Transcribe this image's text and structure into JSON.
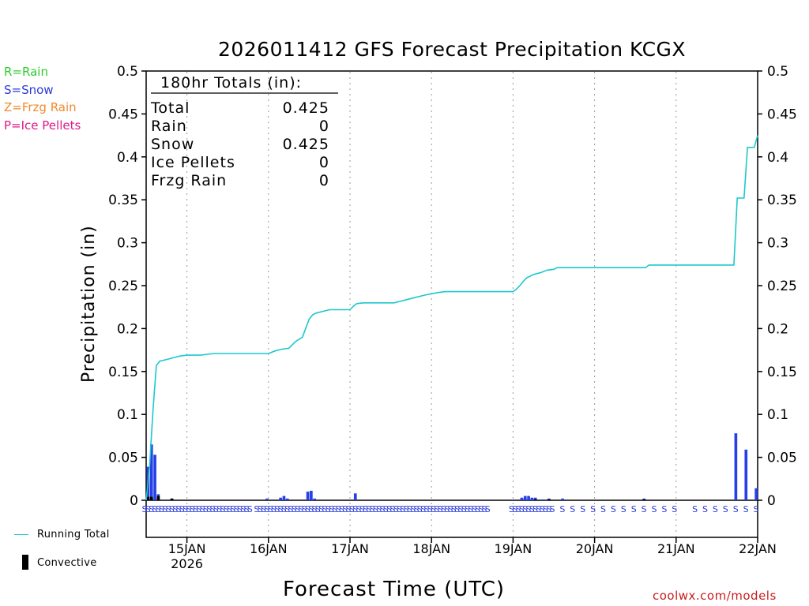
{
  "page": {
    "title": "2026011412 GFS Forecast Precipitation KCGX",
    "credit": "coolwx.com/models"
  },
  "ptype_legend": [
    {
      "label": "R=Rain",
      "color": "#2ecc2e"
    },
    {
      "label": "S=Snow",
      "color": "#2b3bd6"
    },
    {
      "label": "Z=Frzg Rain",
      "color": "#ee8a2c"
    },
    {
      "label": "P=Ice Pellets",
      "color": "#e0198a"
    }
  ],
  "bottom_legend": {
    "running_total": "Running Total",
    "convective": "Convective",
    "running_total_color": "#1cc8cc",
    "convective_color": "#000000"
  },
  "totals_box": {
    "header": "180hr Totals (in):",
    "rows": [
      {
        "label": "Total",
        "value": "0.425"
      },
      {
        "label": "Rain",
        "value": "0"
      },
      {
        "label": "Snow",
        "value": "0.425"
      },
      {
        "label": "Ice Pellets",
        "value": "0"
      },
      {
        "label": "Frzg Rain",
        "value": "0"
      }
    ]
  },
  "chart_data": {
    "type": "bar+line",
    "title": "2026011412 GFS Forecast Precipitation KCGX",
    "xlabel": "Forecast Time (UTC)",
    "ylabel": "Precipitation (in)",
    "ylim": [
      0,
      0.5
    ],
    "yticks": [
      "0",
      "0.05",
      "0.1",
      "0.15",
      "0.2",
      "0.25",
      "0.3",
      "0.35",
      "0.4",
      "0.45",
      "0.5"
    ],
    "xlim_hours": [
      0,
      180
    ],
    "xticks": [
      {
        "hour": 12,
        "label": "15JAN",
        "sublabel": "2026"
      },
      {
        "hour": 36,
        "label": "16JAN"
      },
      {
        "hour": 60,
        "label": "17JAN"
      },
      {
        "hour": 84,
        "label": "18JAN"
      },
      {
        "hour": 108,
        "label": "19JAN"
      },
      {
        "hour": 132,
        "label": "20JAN"
      },
      {
        "hour": 156,
        "label": "21JAN"
      },
      {
        "hour": 180,
        "label": "22JAN"
      }
    ],
    "bar_color": "#2440e6",
    "line_color": "#1cc8cc",
    "ptype_color": "#2b3bd6",
    "precip_bars": [
      {
        "hour": 1,
        "value": 0.039
      },
      {
        "hour": 2,
        "value": 0.065
      },
      {
        "hour": 3,
        "value": 0.053
      },
      {
        "hour": 4,
        "value": 0.007
      },
      {
        "hour": 8,
        "value": 0.002
      },
      {
        "hour": 36,
        "value": 0.002
      },
      {
        "hour": 40,
        "value": 0.003
      },
      {
        "hour": 41,
        "value": 0.005
      },
      {
        "hour": 42,
        "value": 0.002
      },
      {
        "hour": 48,
        "value": 0.01
      },
      {
        "hour": 49,
        "value": 0.011
      },
      {
        "hour": 50,
        "value": 0.002
      },
      {
        "hour": 62,
        "value": 0.008
      },
      {
        "hour": 111,
        "value": 0.003
      },
      {
        "hour": 112,
        "value": 0.005
      },
      {
        "hour": 113,
        "value": 0.005
      },
      {
        "hour": 114,
        "value": 0.003
      },
      {
        "hour": 115,
        "value": 0.003
      },
      {
        "hour": 117,
        "value": 0.001
      },
      {
        "hour": 119,
        "value": 0.002
      },
      {
        "hour": 123,
        "value": 0.002
      },
      {
        "hour": 147,
        "value": 0.002
      },
      {
        "hour": 174,
        "value": 0.078
      },
      {
        "hour": 177,
        "value": 0.059
      },
      {
        "hour": 180,
        "value": 0.014
      }
    ],
    "convective_bars": [
      {
        "hour": 1,
        "value": 0.004
      },
      {
        "hour": 2,
        "value": 0.004
      },
      {
        "hour": 4,
        "value": 0.005
      },
      {
        "hour": 8,
        "value": 0.002
      },
      {
        "hour": 115,
        "value": 0.001
      },
      {
        "hour": 119,
        "value": 0.001
      },
      {
        "hour": 147,
        "value": 0.001
      }
    ],
    "running_total": [
      [
        0,
        0.0
      ],
      [
        1,
        0.039
      ],
      [
        2,
        0.104
      ],
      [
        3,
        0.157
      ],
      [
        4,
        0.162
      ],
      [
        6,
        0.164
      ],
      [
        8,
        0.166
      ],
      [
        10,
        0.168
      ],
      [
        12,
        0.169
      ],
      [
        16,
        0.169
      ],
      [
        18,
        0.17
      ],
      [
        20,
        0.171
      ],
      [
        30,
        0.171
      ],
      [
        36,
        0.171
      ],
      [
        38,
        0.174
      ],
      [
        40,
        0.176
      ],
      [
        42,
        0.177
      ],
      [
        43,
        0.181
      ],
      [
        44,
        0.185
      ],
      [
        46,
        0.19
      ],
      [
        48,
        0.211
      ],
      [
        49,
        0.216
      ],
      [
        50,
        0.218
      ],
      [
        52,
        0.22
      ],
      [
        54,
        0.222
      ],
      [
        60,
        0.222
      ],
      [
        61,
        0.226
      ],
      [
        62,
        0.229
      ],
      [
        64,
        0.23
      ],
      [
        73,
        0.23
      ],
      [
        75,
        0.232
      ],
      [
        78,
        0.235
      ],
      [
        82,
        0.239
      ],
      [
        86,
        0.242
      ],
      [
        88,
        0.243
      ],
      [
        108,
        0.243
      ],
      [
        109,
        0.246
      ],
      [
        110,
        0.25
      ],
      [
        111,
        0.255
      ],
      [
        112,
        0.259
      ],
      [
        114,
        0.263
      ],
      [
        116,
        0.265
      ],
      [
        118,
        0.268
      ],
      [
        120,
        0.269
      ],
      [
        121,
        0.271
      ],
      [
        132,
        0.271
      ],
      [
        147,
        0.271
      ],
      [
        148,
        0.274
      ],
      [
        156,
        0.274
      ],
      [
        173,
        0.274
      ],
      [
        174,
        0.352
      ],
      [
        176,
        0.352
      ],
      [
        177,
        0.411
      ],
      [
        179,
        0.411
      ],
      [
        180,
        0.425
      ]
    ],
    "ptype_marks": [
      {
        "label": "S",
        "start_hour": 0,
        "end_hour": 31,
        "step_hours": 1
      },
      {
        "label": "S",
        "start_hour": 33,
        "end_hour": 101,
        "step_hours": 1
      },
      {
        "label": "S",
        "start_hour": 108,
        "end_hour": 120,
        "step_hours": 1
      },
      {
        "label": "S",
        "start_hour": 123,
        "end_hour": 156,
        "step_hours": 3
      },
      {
        "label": "S",
        "start_hour": 162,
        "end_hour": 180,
        "step_hours": 3
      }
    ]
  }
}
